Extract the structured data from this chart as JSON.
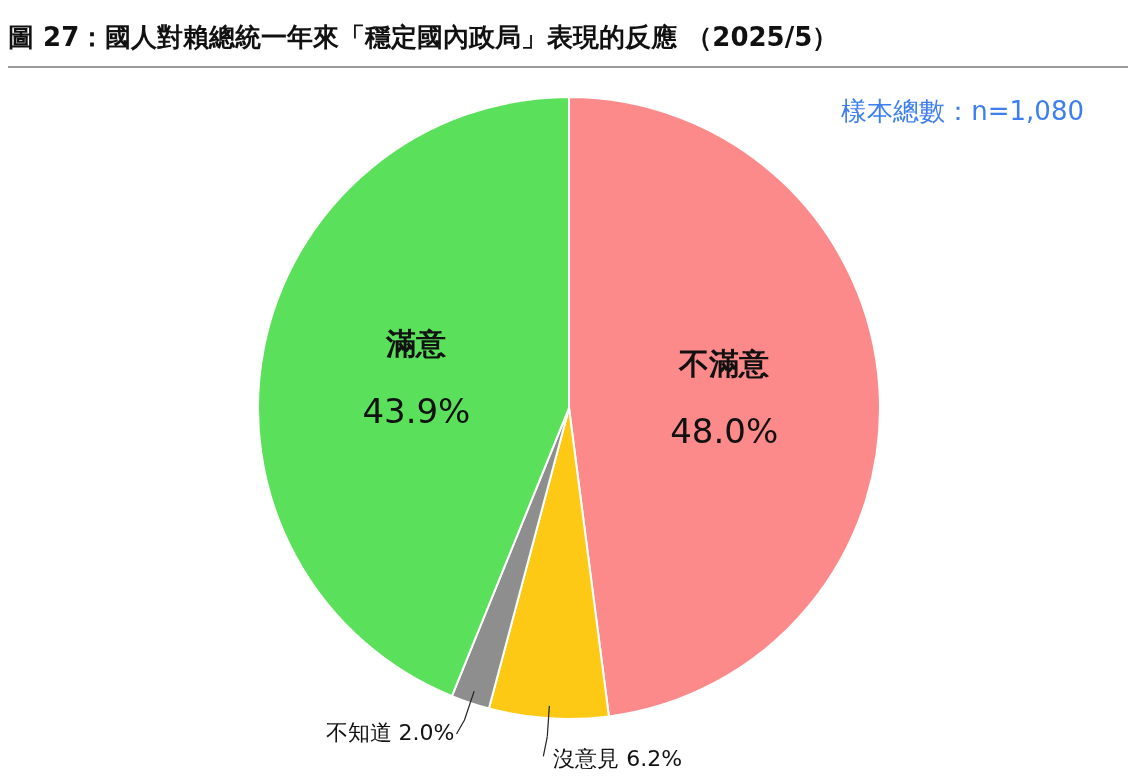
{
  "chart_data": {
    "type": "pie",
    "title": "圖 27：國人對賴總統一年來「穩定國內政局」表現的反應 （2025/5）",
    "annotations": [
      "樣本總數：n=1,080"
    ],
    "categories": [
      "不滿意",
      "沒意見",
      "不知道",
      "滿意"
    ],
    "values": [
      48.0,
      6.2,
      2.0,
      43.9
    ],
    "colors": [
      "#fd8a8a",
      "#fdc915",
      "#8e8e8e",
      "#5ae05a"
    ],
    "value_labels": [
      "48.0%",
      "6.2%",
      "2.0%",
      "43.9%"
    ],
    "legend": false
  }
}
